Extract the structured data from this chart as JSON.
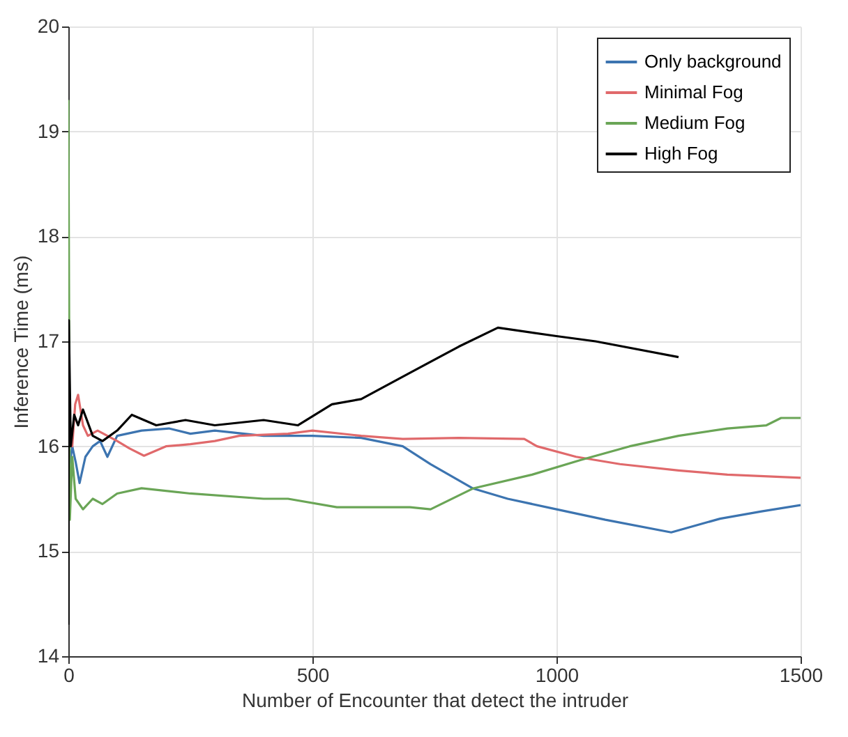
{
  "chart_data": {
    "type": "line",
    "xlabel": "Number of Encounter that detect the intruder",
    "ylabel": "Inference Time (ms)",
    "xlim": [
      0,
      1500
    ],
    "xticks": [
      0,
      500,
      1000,
      1500
    ],
    "ylim": [
      14,
      20
    ],
    "yticks": [
      14,
      15,
      16,
      17,
      18,
      19,
      20
    ],
    "grid": true,
    "legend": "top right",
    "line_style": "solid",
    "series": [
      {
        "name": "Only background",
        "color": "#3c74b0",
        "x": [
          2,
          8,
          15,
          23,
          35,
          50,
          65,
          80,
          100,
          150,
          206,
          250,
          300,
          400,
          500,
          600,
          685,
          742,
          828,
          900,
          1000,
          1100,
          1235,
          1335,
          1420,
          1500
        ],
        "values": [
          15.8,
          16.0,
          15.85,
          15.65,
          15.9,
          16.0,
          16.05,
          15.9,
          16.1,
          16.15,
          16.17,
          16.12,
          16.15,
          16.1,
          16.1,
          16.08,
          16.0,
          15.83,
          15.6,
          15.5,
          15.4,
          15.3,
          15.18,
          15.31,
          15.38,
          15.44
        ]
      },
      {
        "name": "Minimal Fog",
        "color": "#e0696b",
        "x": [
          2,
          8,
          14,
          20,
          30,
          40,
          60,
          80,
          100,
          125,
          155,
          200,
          250,
          300,
          350,
          450,
          500,
          600,
          685,
          800,
          934,
          960,
          1040,
          1130,
          1250,
          1350,
          1500
        ],
        "values": [
          16.2,
          16.0,
          16.4,
          16.49,
          16.2,
          16.1,
          16.15,
          16.1,
          16.05,
          15.98,
          15.91,
          16.0,
          16.02,
          16.05,
          16.1,
          16.12,
          16.15,
          16.1,
          16.07,
          16.08,
          16.07,
          16.0,
          15.9,
          15.83,
          15.77,
          15.73,
          15.7
        ]
      },
      {
        "name": "Medium Fog",
        "color": "#6aa556",
        "x": [
          0,
          3,
          8,
          15,
          30,
          50,
          70,
          100,
          150,
          250,
          400,
          450,
          550,
          700,
          742,
          830,
          950,
          1050,
          1150,
          1250,
          1350,
          1430,
          1460,
          1500
        ],
        "values": [
          19.3,
          15.3,
          15.9,
          15.5,
          15.4,
          15.5,
          15.45,
          15.55,
          15.6,
          15.55,
          15.5,
          15.5,
          15.42,
          15.42,
          15.4,
          15.6,
          15.73,
          15.87,
          16.0,
          16.1,
          16.17,
          16.2,
          16.27,
          16.27
        ]
      },
      {
        "name": "High Fog",
        "color": "#000000",
        "x": [
          0,
          1,
          5,
          12,
          20,
          30,
          50,
          70,
          100,
          130,
          180,
          240,
          300,
          400,
          470,
          540,
          600,
          700,
          800,
          880,
          1000,
          1080,
          1250
        ],
        "values": [
          14.3,
          17.2,
          16.0,
          16.3,
          16.2,
          16.35,
          16.1,
          16.05,
          16.15,
          16.3,
          16.2,
          16.25,
          16.2,
          16.25,
          16.2,
          16.4,
          16.45,
          16.7,
          16.95,
          17.13,
          17.05,
          17.0,
          16.85
        ]
      }
    ]
  }
}
